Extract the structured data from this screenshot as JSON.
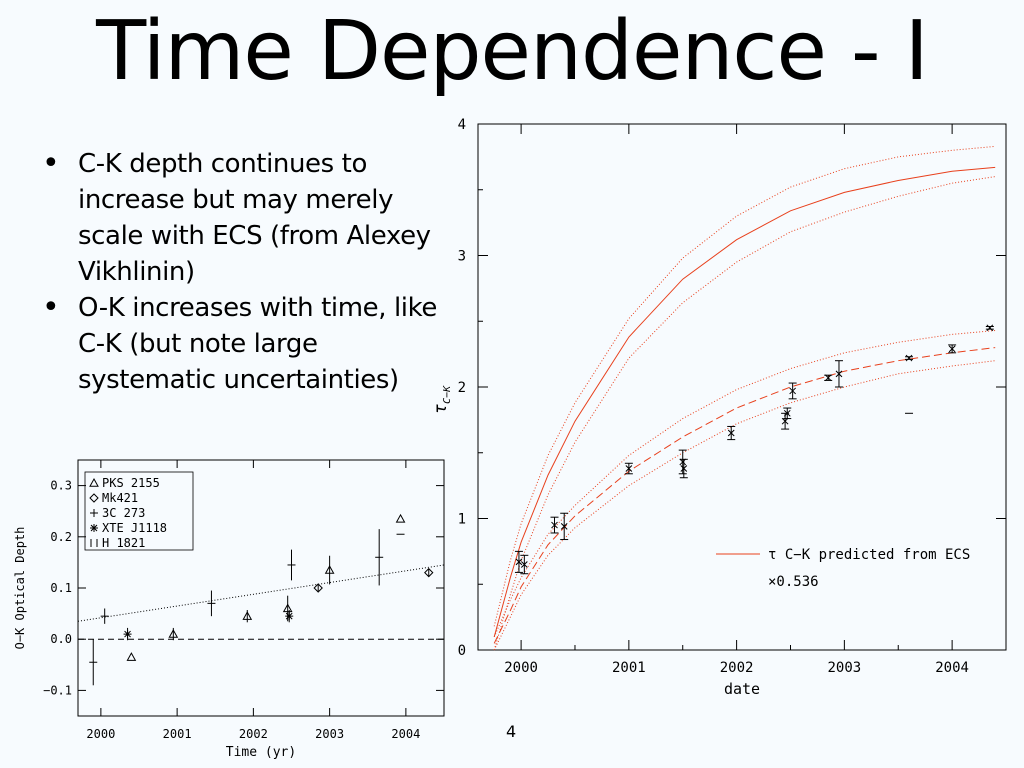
{
  "slide": {
    "title": "Time Dependence - I",
    "bullets": [
      "C-K depth continues to increase but may merely scale with ECS (from Alexey Vikhlinin)",
      "O-K increases with time, like C-K (but note large systematic uncertainties)"
    ],
    "page_number": "4"
  },
  "colors": {
    "background": "#f7fbfe",
    "model": "#e8401c",
    "text": "#000000"
  },
  "chart_data": [
    {
      "id": "ck",
      "type": "line",
      "xlabel": "date",
      "ylabel": "τ C−K",
      "xlim": [
        1999.6,
        2004.5
      ],
      "ylim": [
        0,
        4
      ],
      "xticks": [
        "2000",
        "2001",
        "2002",
        "2003",
        "2004"
      ],
      "yticks": [
        "0",
        "1",
        "2",
        "3",
        "4"
      ],
      "legend": {
        "label": "τ C−K predicted from ECS",
        "scale": "×0.536"
      },
      "model_upper": {
        "x": [
          1999.75,
          1999.9,
          2000.0,
          2000.25,
          2000.5,
          2001.0,
          2001.5,
          2002.0,
          2002.5,
          2003.0,
          2003.5,
          2004.0,
          2004.4
        ],
        "low": [
          0.0,
          0.42,
          0.68,
          1.18,
          1.58,
          2.22,
          2.64,
          2.95,
          3.18,
          3.33,
          3.45,
          3.55,
          3.6
        ],
        "mid": [
          0.1,
          0.55,
          0.82,
          1.33,
          1.74,
          2.38,
          2.82,
          3.12,
          3.34,
          3.48,
          3.57,
          3.64,
          3.67
        ],
        "high": [
          0.18,
          0.68,
          0.96,
          1.48,
          1.88,
          2.52,
          2.98,
          3.3,
          3.52,
          3.66,
          3.75,
          3.8,
          3.83
        ]
      },
      "model_lower": {
        "x": [
          1999.75,
          1999.9,
          2000.0,
          2000.25,
          2000.5,
          2001.0,
          2001.5,
          2002.0,
          2002.5,
          2003.0,
          2003.5,
          2004.0,
          2004.4
        ],
        "low": [
          0.0,
          0.25,
          0.42,
          0.72,
          0.93,
          1.25,
          1.5,
          1.72,
          1.88,
          2.0,
          2.1,
          2.16,
          2.2
        ],
        "mid": [
          0.05,
          0.3,
          0.48,
          0.8,
          1.02,
          1.36,
          1.62,
          1.84,
          2.0,
          2.12,
          2.2,
          2.26,
          2.3
        ],
        "high": [
          0.1,
          0.38,
          0.55,
          0.88,
          1.1,
          1.48,
          1.76,
          1.98,
          2.14,
          2.26,
          2.34,
          2.4,
          2.43
        ]
      },
      "points": [
        {
          "x": 1999.98,
          "y": 0.67,
          "err": 0.08
        },
        {
          "x": 2000.03,
          "y": 0.65,
          "err": 0.07
        },
        {
          "x": 2000.31,
          "y": 0.95,
          "err": 0.06
        },
        {
          "x": 2000.4,
          "y": 0.94,
          "err": 0.1
        },
        {
          "x": 2001.0,
          "y": 1.38,
          "err": 0.04
        },
        {
          "x": 2001.5,
          "y": 1.43,
          "err": 0.09
        },
        {
          "x": 2001.51,
          "y": 1.38,
          "err": 0.07
        },
        {
          "x": 2001.95,
          "y": 1.65,
          "err": 0.05
        },
        {
          "x": 2002.45,
          "y": 1.74,
          "err": 0.06
        },
        {
          "x": 2002.47,
          "y": 1.8,
          "err": 0.04
        },
        {
          "x": 2002.52,
          "y": 1.97,
          "err": 0.06
        },
        {
          "x": 2002.85,
          "y": 2.07,
          "err": 0.02
        },
        {
          "x": 2002.95,
          "y": 2.1,
          "err": 0.1
        },
        {
          "x": 2003.6,
          "y": 2.22,
          "err": 0.01
        },
        {
          "x": 2003.6,
          "y": 1.8,
          "err": 0.0
        },
        {
          "x": 2004.0,
          "y": 2.29,
          "err": 0.03
        },
        {
          "x": 2004.35,
          "y": 2.45,
          "err": 0.01
        }
      ]
    },
    {
      "id": "ok",
      "type": "scatter",
      "xlabel": "Time (yr)",
      "ylabel": "O−K Optical Depth",
      "xlim": [
        1999.7,
        2004.5
      ],
      "ylim": [
        -0.15,
        0.35
      ],
      "xticks": [
        "2000",
        "2001",
        "2002",
        "2003",
        "2004"
      ],
      "yticks": [
        "−0.1",
        "0.0",
        "0.1",
        "0.2",
        "0.3"
      ],
      "legend": [
        "PKS 2155",
        "Mk421",
        "3C 273",
        "XTE J1118",
        "H 1821"
      ],
      "trend": {
        "x": [
          1999.7,
          2004.5
        ],
        "y": [
          0.035,
          0.145
        ]
      },
      "zero_line": 0.0,
      "points": [
        {
          "x": 1999.9,
          "y": -0.045,
          "err": 0.045,
          "marker": "plus"
        },
        {
          "x": 2000.05,
          "y": 0.045,
          "err": 0.015,
          "marker": "plus"
        },
        {
          "x": 2000.35,
          "y": 0.01,
          "err": 0.012,
          "marker": "star"
        },
        {
          "x": 2000.4,
          "y": -0.035,
          "err": 0.0,
          "marker": "triangle"
        },
        {
          "x": 2000.95,
          "y": 0.01,
          "err": 0.012,
          "marker": "triangle"
        },
        {
          "x": 2001.45,
          "y": 0.07,
          "err": 0.025,
          "marker": "plus"
        },
        {
          "x": 2001.92,
          "y": 0.045,
          "err": 0.012,
          "marker": "triangle"
        },
        {
          "x": 2002.45,
          "y": 0.06,
          "err": 0.025,
          "marker": "triangle"
        },
        {
          "x": 2002.47,
          "y": 0.045,
          "err": 0.012,
          "marker": "star"
        },
        {
          "x": 2002.5,
          "y": 0.145,
          "err": 0.03,
          "marker": "plus"
        },
        {
          "x": 2002.85,
          "y": 0.1,
          "err": 0.006,
          "marker": "diamond"
        },
        {
          "x": 2003.0,
          "y": 0.135,
          "err": 0.028,
          "marker": "triangle"
        },
        {
          "x": 2003.65,
          "y": 0.16,
          "err": 0.055,
          "marker": "plus"
        },
        {
          "x": 2003.93,
          "y": 0.235,
          "err": 0.0,
          "marker": "triangle"
        },
        {
          "x": 2003.93,
          "y": 0.205,
          "err": 0.0,
          "marker": "bar"
        },
        {
          "x": 2004.3,
          "y": 0.13,
          "err": 0.008,
          "marker": "diamond"
        }
      ]
    }
  ]
}
